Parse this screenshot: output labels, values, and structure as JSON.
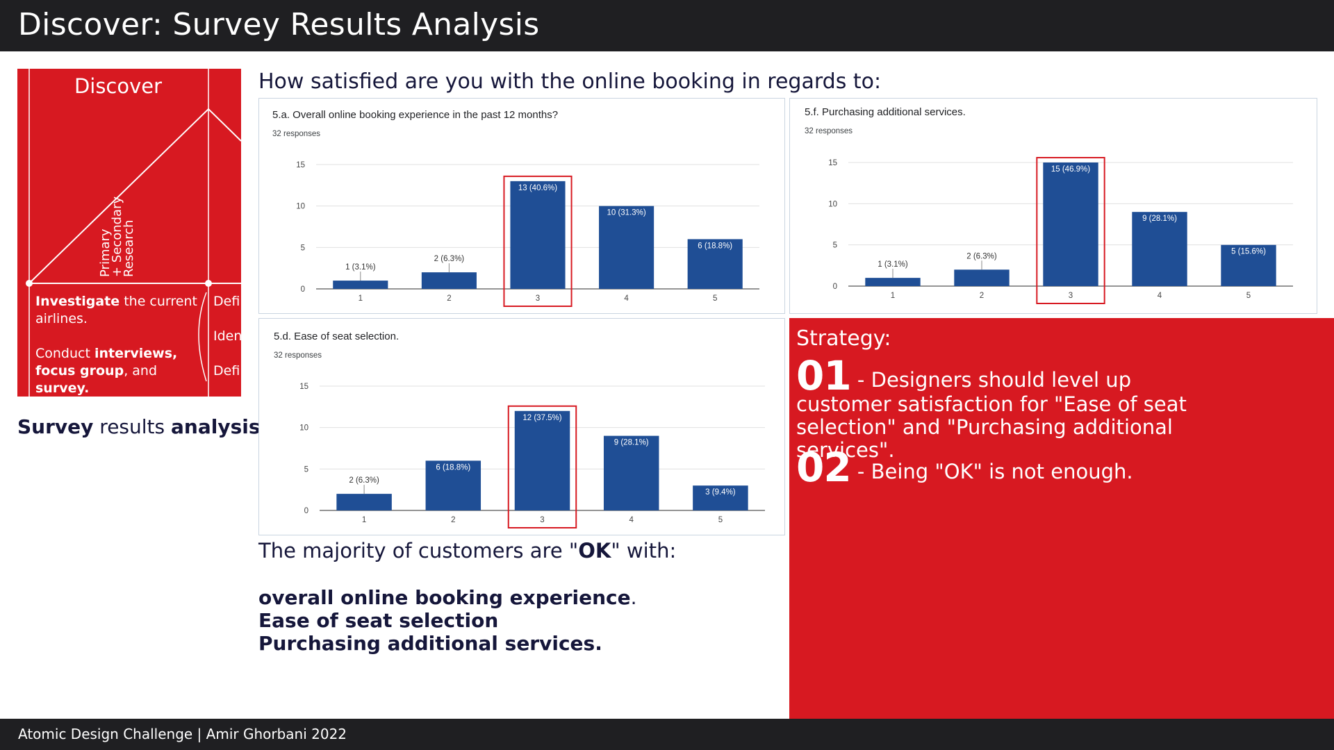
{
  "header": {
    "title": "Discover: Survey Results Analysis"
  },
  "footer": {
    "text": "Atomic Design Challenge | Amir Ghorbani 2022"
  },
  "double_diamond": {
    "title": "Discover",
    "vertical_label_1": "Primary",
    "vertical_label_2": "+ Secondary",
    "vertical_label_3": "Research",
    "text_1_bold": "Investigate",
    "text_1_rest": " the current airlines.",
    "text_2_pre": "Conduct ",
    "text_2_bold_1": "interviews,",
    "text_2_bold_2": "focus group",
    "text_2_mid": ", and ",
    "text_2_bold_3": "survey.",
    "side_1": "Defi",
    "side_2": "Iden",
    "side_3": "Defi"
  },
  "caption": {
    "bold_1": "Survey",
    "middle": " results ",
    "bold_2": "analysis"
  },
  "question": "How satisfied are you with the online booking in regards to:",
  "chart_data": [
    {
      "type": "bar",
      "title": "5.a. Overall online booking experience in the past 12 months?",
      "subtitle": "32 responses",
      "categories": [
        "1",
        "2",
        "3",
        "4",
        "5"
      ],
      "values": [
        1,
        2,
        13,
        10,
        6
      ],
      "labels": [
        "1 (3.1%)",
        "2 (6.3%)",
        "13 (40.6%)",
        "10 (31.3%)",
        "6 (18.8%)"
      ],
      "yticks": [
        "0",
        "5",
        "10",
        "15"
      ],
      "ylim": [
        0,
        15
      ],
      "highlight_index": 2,
      "color": "#1f4e95",
      "highlight_color": "#d71921"
    },
    {
      "type": "bar",
      "title": "5.f. Purchasing additional services.",
      "subtitle": "32 responses",
      "categories": [
        "1",
        "2",
        "3",
        "4",
        "5"
      ],
      "values": [
        1,
        2,
        15,
        9,
        5
      ],
      "labels": [
        "1 (3.1%)",
        "2 (6.3%)",
        "15 (46.9%)",
        "9 (28.1%)",
        "5 (15.6%)"
      ],
      "yticks": [
        "0",
        "5",
        "10",
        "15"
      ],
      "ylim": [
        0,
        15
      ],
      "highlight_index": 2,
      "color": "#1f4e95",
      "highlight_color": "#d71921"
    },
    {
      "type": "bar",
      "title": "5.d. Ease of seat selection.",
      "subtitle": "32 responses",
      "categories": [
        "1",
        "2",
        "3",
        "4",
        "5"
      ],
      "values": [
        2,
        6,
        12,
        9,
        3
      ],
      "labels": [
        "2 (6.3%)",
        "6 (18.8%)",
        "12 (37.5%)",
        "9 (28.1%)",
        "3 (9.4%)"
      ],
      "yticks": [
        "0",
        "5",
        "10",
        "15"
      ],
      "ylim": [
        0,
        15
      ],
      "highlight_index": 2,
      "color": "#1f4e95",
      "highlight_color": "#d71921"
    }
  ],
  "conclusion": {
    "lead_pre": "The majority of customers are \"",
    "lead_bold": "OK",
    "lead_post": "\" with:",
    "item_1": "overall online booking experience",
    "item_1_suffix": ".",
    "item_2": "Ease of seat selection",
    "item_3": "Purchasing additional services."
  },
  "strategy": {
    "title": "Strategy:",
    "num_1": "01",
    "text_1": " - Designers should level up customer satisfaction for \"Ease of seat selection\" and \"Purchasing additional services\".",
    "num_2": "02",
    "text_2": " - Being \"OK\" is not enough."
  },
  "colors": {
    "brand_red": "#d71921",
    "dark": "#1f1f22",
    "navy_text": "#15163a",
    "bar_blue": "#1f4e95"
  }
}
